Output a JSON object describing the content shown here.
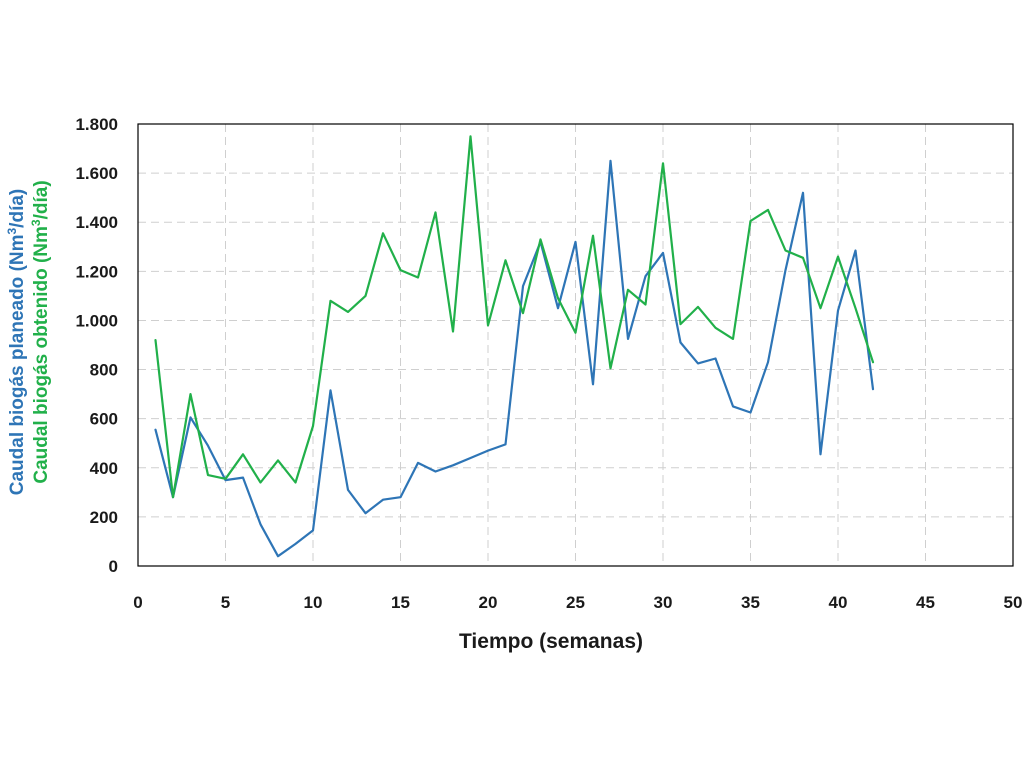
{
  "chart_data": {
    "type": "line",
    "xlabel": "Tiempo (semanas)",
    "ylabel_parts": [
      {
        "pre": "Caudal biogás planeado (Nm",
        "sup": "3",
        "post": "/día)"
      },
      {
        "pre": "Caudal biogás obtenido (Nm",
        "sup": "3",
        "post": "/día)"
      }
    ],
    "xlim": [
      0,
      50
    ],
    "ylim": [
      0,
      1800
    ],
    "x_ticks": [
      0,
      5,
      10,
      15,
      20,
      25,
      30,
      35,
      40,
      45,
      50
    ],
    "y_ticks": [
      0,
      200,
      400,
      600,
      800,
      1000,
      1200,
      1400,
      1600,
      1800
    ],
    "y_tick_labels": [
      "0",
      "200",
      "400",
      "600",
      "800",
      "1.000",
      "1.200",
      "1.400",
      "1.600",
      "1.800"
    ],
    "grid": true,
    "colors": {
      "planeado": "#2e75b6",
      "obtenido": "#21b04a"
    },
    "x": [
      1,
      2,
      3,
      4,
      5,
      6,
      7,
      8,
      9,
      10,
      11,
      12,
      13,
      14,
      15,
      16,
      17,
      18,
      19,
      20,
      21,
      22,
      23,
      24,
      25,
      26,
      27,
      28,
      29,
      30,
      31,
      32,
      33,
      34,
      35,
      36,
      37,
      38,
      39,
      40,
      41,
      42
    ],
    "series": [
      {
        "key": "planeado",
        "values": [
          555,
          280,
          605,
          490,
          350,
          360,
          170,
          40,
          90,
          145,
          715,
          310,
          215,
          270,
          280,
          420,
          385,
          410,
          440,
          470,
          495,
          1140,
          1320,
          1050,
          1320,
          740,
          1650,
          925,
          1180,
          1275,
          910,
          825,
          845,
          650,
          625,
          830,
          1205,
          1520,
          455,
          1040,
          1285,
          720
        ]
      },
      {
        "key": "obtenido",
        "values": [
          920,
          280,
          700,
          370,
          355,
          455,
          340,
          430,
          340,
          570,
          1080,
          1035,
          1100,
          1355,
          1205,
          1175,
          1440,
          955,
          1750,
          980,
          1245,
          1030,
          1330,
          1090,
          950,
          1345,
          805,
          1125,
          1065,
          1640,
          985,
          1055,
          970,
          925,
          1405,
          1450,
          1285,
          1255,
          1050,
          1260,
          1050,
          830
        ]
      }
    ]
  }
}
